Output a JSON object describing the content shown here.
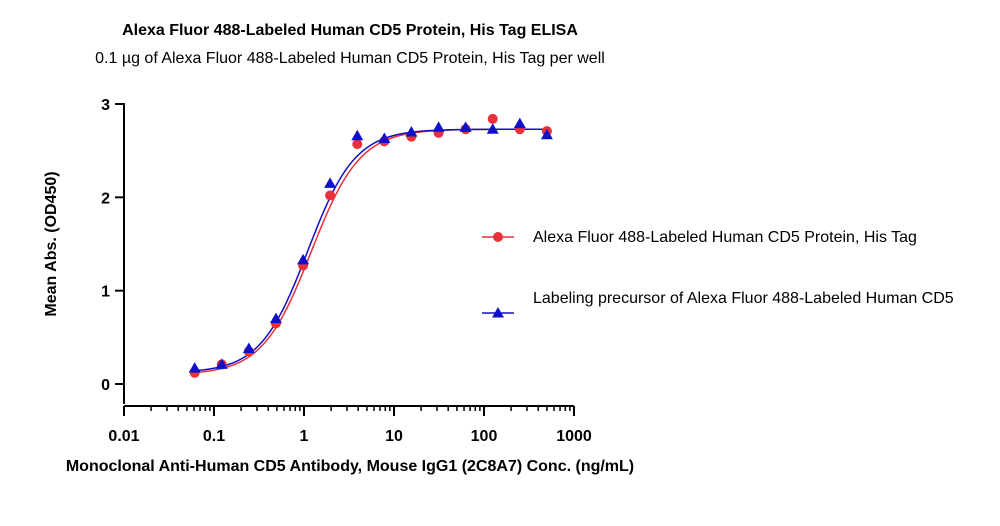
{
  "chart_data": {
    "type": "scatter",
    "title": "Alexa Fluor 488-Labeled Human CD5 Protein, His Tag ELISA",
    "subtitle": "0.1 µg of Alexa Fluor 488-Labeled Human CD5 Protein, His Tag per well",
    "xlabel": "Monoclonal Anti-Human CD5 Antibody, Mouse IgG1 (2C8A7) Conc. (ng/mL)",
    "ylabel": "Mean Abs. (OD450)",
    "xscale": "log",
    "xlim": [
      0.01,
      1000
    ],
    "ylim": [
      0,
      3
    ],
    "xticks": [
      "0.01",
      "0.1",
      "1",
      "10",
      "100",
      "1000"
    ],
    "xtick_values": [
      0.01,
      0.1,
      1,
      10,
      100,
      1000
    ],
    "yticks": [
      "0",
      "1",
      "2",
      "3"
    ],
    "ytick_values": [
      0,
      1,
      2,
      3
    ],
    "grid": false,
    "legend_position": "right",
    "series": [
      {
        "name": "Alexa Fluor 488-Labeled Human CD5 Protein, His Tag",
        "color": "#e8313a",
        "marker": "circle",
        "x": [
          0.061,
          0.122,
          0.244,
          0.488,
          0.977,
          1.95,
          3.91,
          7.81,
          15.6,
          31.3,
          62.5,
          125,
          250,
          500
        ],
        "y": [
          0.12,
          0.21,
          0.35,
          0.65,
          1.27,
          2.02,
          2.57,
          2.6,
          2.65,
          2.69,
          2.73,
          2.84,
          2.73,
          2.71
        ],
        "fit": {
          "bottom": 0.1,
          "top": 2.73,
          "ec50": 1.2,
          "hill": 1.6
        }
      },
      {
        "name": "Labeling precursor of Alexa Fluor 488-Labeled Human CD5",
        "color": "#1010c8",
        "marker": "triangle",
        "x": [
          0.061,
          0.122,
          0.244,
          0.488,
          0.977,
          1.95,
          3.91,
          7.81,
          15.6,
          31.3,
          62.5,
          125,
          250,
          500
        ],
        "y": [
          0.17,
          0.21,
          0.38,
          0.7,
          1.33,
          2.15,
          2.66,
          2.63,
          2.7,
          2.75,
          2.75,
          2.73,
          2.79,
          2.67
        ],
        "fit": {
          "bottom": 0.12,
          "top": 2.73,
          "ec50": 1.1,
          "hill": 1.65
        }
      }
    ]
  }
}
